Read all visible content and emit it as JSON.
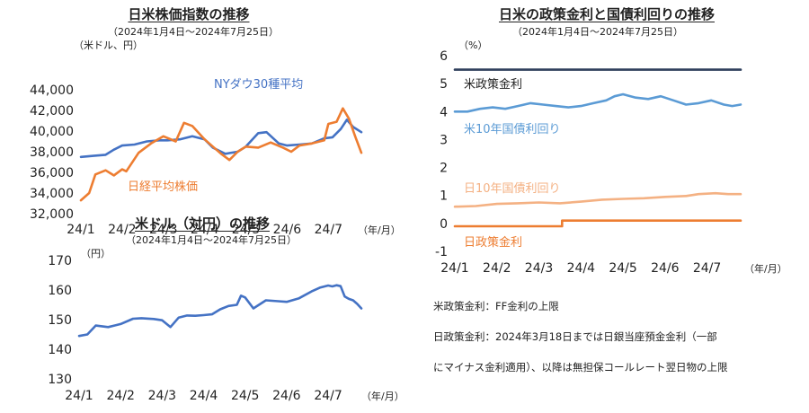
{
  "notes": {
    "line1": "米政策金利：FF金利の上限",
    "line2": "日政策金利：2024年3月18日までは日銀当座預金金利（一部",
    "line3": "にマイナス金利適用）、以降は無担保コールレート翌日物の上限"
  },
  "chart_data": [
    {
      "id": "stocks",
      "type": "line",
      "title": "日米株価指数の推移",
      "subtitle": "（2024年1月4日〜2024年7月25日）",
      "unit_label": "（米ドル、円）",
      "x_unit": "（年/月）",
      "ylim": [
        32000,
        44000
      ],
      "yticks": [
        32000,
        34000,
        36000,
        38000,
        40000,
        42000,
        44000
      ],
      "ytick_labels": [
        "32,000",
        "34,000",
        "36,000",
        "38,000",
        "40,000",
        "42,000",
        "44,000"
      ],
      "categories": [
        "24/1",
        "24/2",
        "24/3",
        "24/4",
        "24/5",
        "24/6",
        "24/7"
      ],
      "xlim": [
        0,
        6.8
      ],
      "series": [
        {
          "name": "NYダウ30種平均",
          "color": "#4472C4",
          "x": [
            0,
            0.3,
            0.6,
            0.8,
            1.0,
            1.3,
            1.6,
            1.9,
            2.1,
            2.4,
            2.7,
            3.0,
            3.2,
            3.5,
            3.8,
            4.0,
            4.3,
            4.5,
            4.8,
            5.0,
            5.3,
            5.6,
            5.9,
            6.1,
            6.3,
            6.45,
            6.6,
            6.8
          ],
          "y": [
            37500,
            37600,
            37700,
            38200,
            38600,
            38700,
            39000,
            39100,
            39100,
            39200,
            39500,
            39200,
            38400,
            37800,
            38000,
            38500,
            39800,
            39900,
            38800,
            38600,
            38700,
            38800,
            39300,
            39400,
            40200,
            41100,
            40400,
            39900
          ]
        },
        {
          "name": "日経平均株価",
          "color": "#ED7D31",
          "x": [
            0,
            0.2,
            0.35,
            0.6,
            0.8,
            1.0,
            1.1,
            1.4,
            1.7,
            2.0,
            2.3,
            2.5,
            2.7,
            3.0,
            3.2,
            3.4,
            3.6,
            3.8,
            4.0,
            4.3,
            4.6,
            4.9,
            5.1,
            5.3,
            5.6,
            5.9,
            6.0,
            6.2,
            6.35,
            6.5,
            6.65,
            6.8
          ],
          "y": [
            33300,
            34000,
            35800,
            36200,
            35700,
            36300,
            36100,
            37900,
            38800,
            39500,
            39000,
            40800,
            40500,
            39200,
            38500,
            37800,
            37200,
            38000,
            38500,
            38400,
            38900,
            38400,
            38000,
            38600,
            38800,
            39100,
            40700,
            40900,
            42200,
            41200,
            39500,
            37900
          ]
        }
      ]
    },
    {
      "id": "usdjpy",
      "type": "line",
      "title": "米ドル（対円）の推移",
      "subtitle": "（2024年1月4日〜2024年7月25日）",
      "unit_label": "（円）",
      "x_unit": "（年/月）",
      "ylim": [
        130,
        170
      ],
      "yticks": [
        130,
        140,
        150,
        160,
        170
      ],
      "ytick_labels": [
        "130",
        "140",
        "150",
        "160",
        "170"
      ],
      "categories": [
        "24/1",
        "24/2",
        "24/3",
        "24/4",
        "24/5",
        "24/6",
        "24/7"
      ],
      "xlim": [
        0,
        6.8
      ],
      "series": [
        {
          "name": "米ドル（対円）",
          "color": "#4472C4",
          "x": [
            0,
            0.2,
            0.4,
            0.7,
            1.0,
            1.3,
            1.5,
            1.8,
            2.0,
            2.2,
            2.4,
            2.6,
            2.8,
            3.0,
            3.2,
            3.4,
            3.6,
            3.8,
            3.9,
            4.0,
            4.2,
            4.5,
            4.8,
            5.0,
            5.3,
            5.6,
            5.8,
            6.0,
            6.1,
            6.2,
            6.3,
            6.4,
            6.5,
            6.6,
            6.7,
            6.8
          ],
          "y": [
            144.5,
            145,
            148,
            147.5,
            148.5,
            150.3,
            150.5,
            150.2,
            149.8,
            147.5,
            150.7,
            151.4,
            151.3,
            151.5,
            151.8,
            153.5,
            154.6,
            155.0,
            158.1,
            157.5,
            153.8,
            156.5,
            156.2,
            156.0,
            157.2,
            159.5,
            160.8,
            161.5,
            161.2,
            161.6,
            161.3,
            157.8,
            157.0,
            156.5,
            155.3,
            153.8
          ]
        }
      ]
    },
    {
      "id": "rates",
      "type": "line",
      "title": "日米の政策金利と国債利回りの推移",
      "subtitle": "（2024年1月4日〜2024年7月25日）",
      "unit_label": "（%）",
      "x_unit": "（年/月）",
      "ylim": [
        -1,
        6
      ],
      "yticks": [
        -1,
        0,
        1,
        2,
        3,
        4,
        5,
        6
      ],
      "ytick_labels": [
        "-1",
        "0",
        "1",
        "2",
        "3",
        "4",
        "5",
        "6"
      ],
      "categories": [
        "24/1",
        "24/2",
        "24/3",
        "24/4",
        "24/5",
        "24/6",
        "24/7"
      ],
      "xlim": [
        0,
        6.8
      ],
      "series": [
        {
          "name": "米政策金利",
          "color": "#2F3F5C",
          "x": [
            0,
            6.8
          ],
          "y": [
            5.5,
            5.5
          ]
        },
        {
          "name": "米10年国債利回り",
          "color": "#5B9BD5",
          "x": [
            0,
            0.3,
            0.6,
            0.9,
            1.2,
            1.5,
            1.8,
            2.1,
            2.4,
            2.7,
            3.0,
            3.3,
            3.6,
            3.8,
            4.0,
            4.3,
            4.6,
            4.9,
            5.2,
            5.5,
            5.8,
            6.1,
            6.4,
            6.6,
            6.8
          ],
          "y": [
            4.0,
            4.0,
            4.1,
            4.15,
            4.1,
            4.2,
            4.3,
            4.25,
            4.2,
            4.15,
            4.2,
            4.3,
            4.4,
            4.55,
            4.62,
            4.5,
            4.45,
            4.55,
            4.4,
            4.25,
            4.3,
            4.4,
            4.25,
            4.2,
            4.25
          ]
        },
        {
          "name": "日10年国債利回り",
          "color": "#F4B183",
          "x": [
            0,
            0.5,
            1.0,
            1.5,
            2.0,
            2.5,
            3.0,
            3.5,
            4.0,
            4.5,
            5.0,
            5.5,
            5.8,
            6.2,
            6.5,
            6.8
          ],
          "y": [
            0.6,
            0.62,
            0.7,
            0.72,
            0.75,
            0.72,
            0.78,
            0.85,
            0.88,
            0.9,
            0.95,
            0.98,
            1.05,
            1.08,
            1.05,
            1.05
          ]
        },
        {
          "name": "日政策金利",
          "color": "#ED7D31",
          "x": [
            0,
            2.55,
            2.55,
            6.8
          ],
          "y": [
            -0.1,
            -0.1,
            0.1,
            0.1
          ]
        }
      ]
    }
  ]
}
